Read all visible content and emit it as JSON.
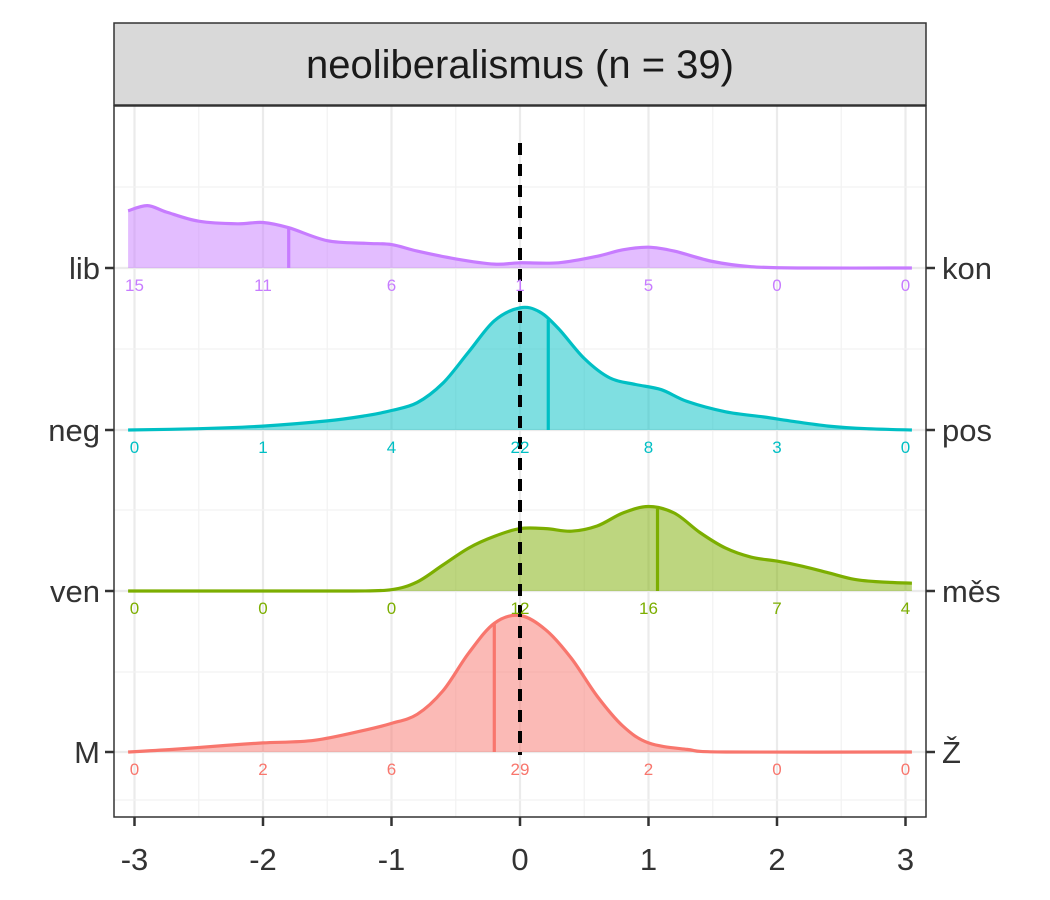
{
  "chart_data": {
    "type": "area",
    "title": "neoliberalismus (n = 39)",
    "xlabel": "",
    "ylabel": "",
    "x_ticks": [
      -3,
      -2,
      -1,
      0,
      1,
      2,
      3
    ],
    "xlim": [
      -3.1,
      3.1
    ],
    "reference_line_x": 0,
    "grid": true,
    "legend": "none",
    "series": [
      {
        "left_label": "lib",
        "right_label": "kon",
        "color": "#C77CFF",
        "mean": -1.8,
        "counts": [
          "15",
          "11",
          "6",
          "1",
          "5",
          "0",
          "0"
        ],
        "density": [
          [
            -3.05,
            0.44
          ],
          [
            -2.9,
            0.48
          ],
          [
            -2.75,
            0.43
          ],
          [
            -2.5,
            0.36
          ],
          [
            -2.2,
            0.34
          ],
          [
            -2.0,
            0.35
          ],
          [
            -1.8,
            0.31
          ],
          [
            -1.5,
            0.21
          ],
          [
            -1.2,
            0.19
          ],
          [
            -1.0,
            0.18
          ],
          [
            -0.8,
            0.13
          ],
          [
            -0.5,
            0.07
          ],
          [
            -0.2,
            0.03
          ],
          [
            0.0,
            0.04
          ],
          [
            0.3,
            0.04
          ],
          [
            0.6,
            0.09
          ],
          [
            0.8,
            0.14
          ],
          [
            1.0,
            0.16
          ],
          [
            1.2,
            0.13
          ],
          [
            1.5,
            0.05
          ],
          [
            1.8,
            0.01
          ],
          [
            2.2,
            0.0
          ],
          [
            3.05,
            0.0
          ]
        ]
      },
      {
        "left_label": "neg",
        "right_label": "pos",
        "color": "#00BFC4",
        "mean": 0.22,
        "counts": [
          "0",
          "1",
          "4",
          "22",
          "8",
          "3",
          "0"
        ],
        "density": [
          [
            -3.05,
            0.0
          ],
          [
            -2.5,
            0.01
          ],
          [
            -2.0,
            0.03
          ],
          [
            -1.5,
            0.07
          ],
          [
            -1.2,
            0.11
          ],
          [
            -1.0,
            0.15
          ],
          [
            -0.8,
            0.21
          ],
          [
            -0.6,
            0.36
          ],
          [
            -0.4,
            0.6
          ],
          [
            -0.2,
            0.84
          ],
          [
            0.0,
            0.94
          ],
          [
            0.15,
            0.91
          ],
          [
            0.3,
            0.78
          ],
          [
            0.5,
            0.55
          ],
          [
            0.7,
            0.4
          ],
          [
            0.9,
            0.35
          ],
          [
            1.1,
            0.31
          ],
          [
            1.3,
            0.22
          ],
          [
            1.6,
            0.14
          ],
          [
            1.9,
            0.1
          ],
          [
            2.1,
            0.07
          ],
          [
            2.4,
            0.03
          ],
          [
            2.7,
            0.01
          ],
          [
            3.05,
            0.0
          ]
        ]
      },
      {
        "left_label": "ven",
        "right_label": "měs",
        "color": "#7CAE00",
        "mean": 1.07,
        "counts": [
          "0",
          "0",
          "0",
          "12",
          "16",
          "7",
          "4"
        ],
        "density": [
          [
            -3.05,
            0.0
          ],
          [
            -2.0,
            0.0
          ],
          [
            -1.3,
            0.0
          ],
          [
            -1.0,
            0.01
          ],
          [
            -0.8,
            0.07
          ],
          [
            -0.6,
            0.2
          ],
          [
            -0.4,
            0.33
          ],
          [
            -0.2,
            0.42
          ],
          [
            0.0,
            0.48
          ],
          [
            0.2,
            0.48
          ],
          [
            0.4,
            0.46
          ],
          [
            0.6,
            0.5
          ],
          [
            0.8,
            0.6
          ],
          [
            1.0,
            0.65
          ],
          [
            1.2,
            0.6
          ],
          [
            1.4,
            0.45
          ],
          [
            1.6,
            0.33
          ],
          [
            1.8,
            0.26
          ],
          [
            2.0,
            0.23
          ],
          [
            2.2,
            0.19
          ],
          [
            2.4,
            0.14
          ],
          [
            2.6,
            0.09
          ],
          [
            2.8,
            0.07
          ],
          [
            3.05,
            0.06
          ]
        ]
      },
      {
        "left_label": "M",
        "right_label": "Ž",
        "color": "#F8766D",
        "mean": -0.2,
        "counts": [
          "0",
          "2",
          "6",
          "29",
          "2",
          "0",
          "0"
        ],
        "density": [
          [
            -3.05,
            0.0
          ],
          [
            -2.7,
            0.02
          ],
          [
            -2.3,
            0.05
          ],
          [
            -2.0,
            0.07
          ],
          [
            -1.6,
            0.09
          ],
          [
            -1.2,
            0.17
          ],
          [
            -1.0,
            0.22
          ],
          [
            -0.8,
            0.29
          ],
          [
            -0.6,
            0.47
          ],
          [
            -0.4,
            0.76
          ],
          [
            -0.2,
            0.99
          ],
          [
            0.0,
            1.05
          ],
          [
            0.2,
            0.94
          ],
          [
            0.4,
            0.72
          ],
          [
            0.6,
            0.43
          ],
          [
            0.8,
            0.2
          ],
          [
            1.0,
            0.07
          ],
          [
            1.3,
            0.02
          ],
          [
            1.6,
            0.0
          ],
          [
            3.05,
            0.0
          ]
        ]
      }
    ]
  }
}
